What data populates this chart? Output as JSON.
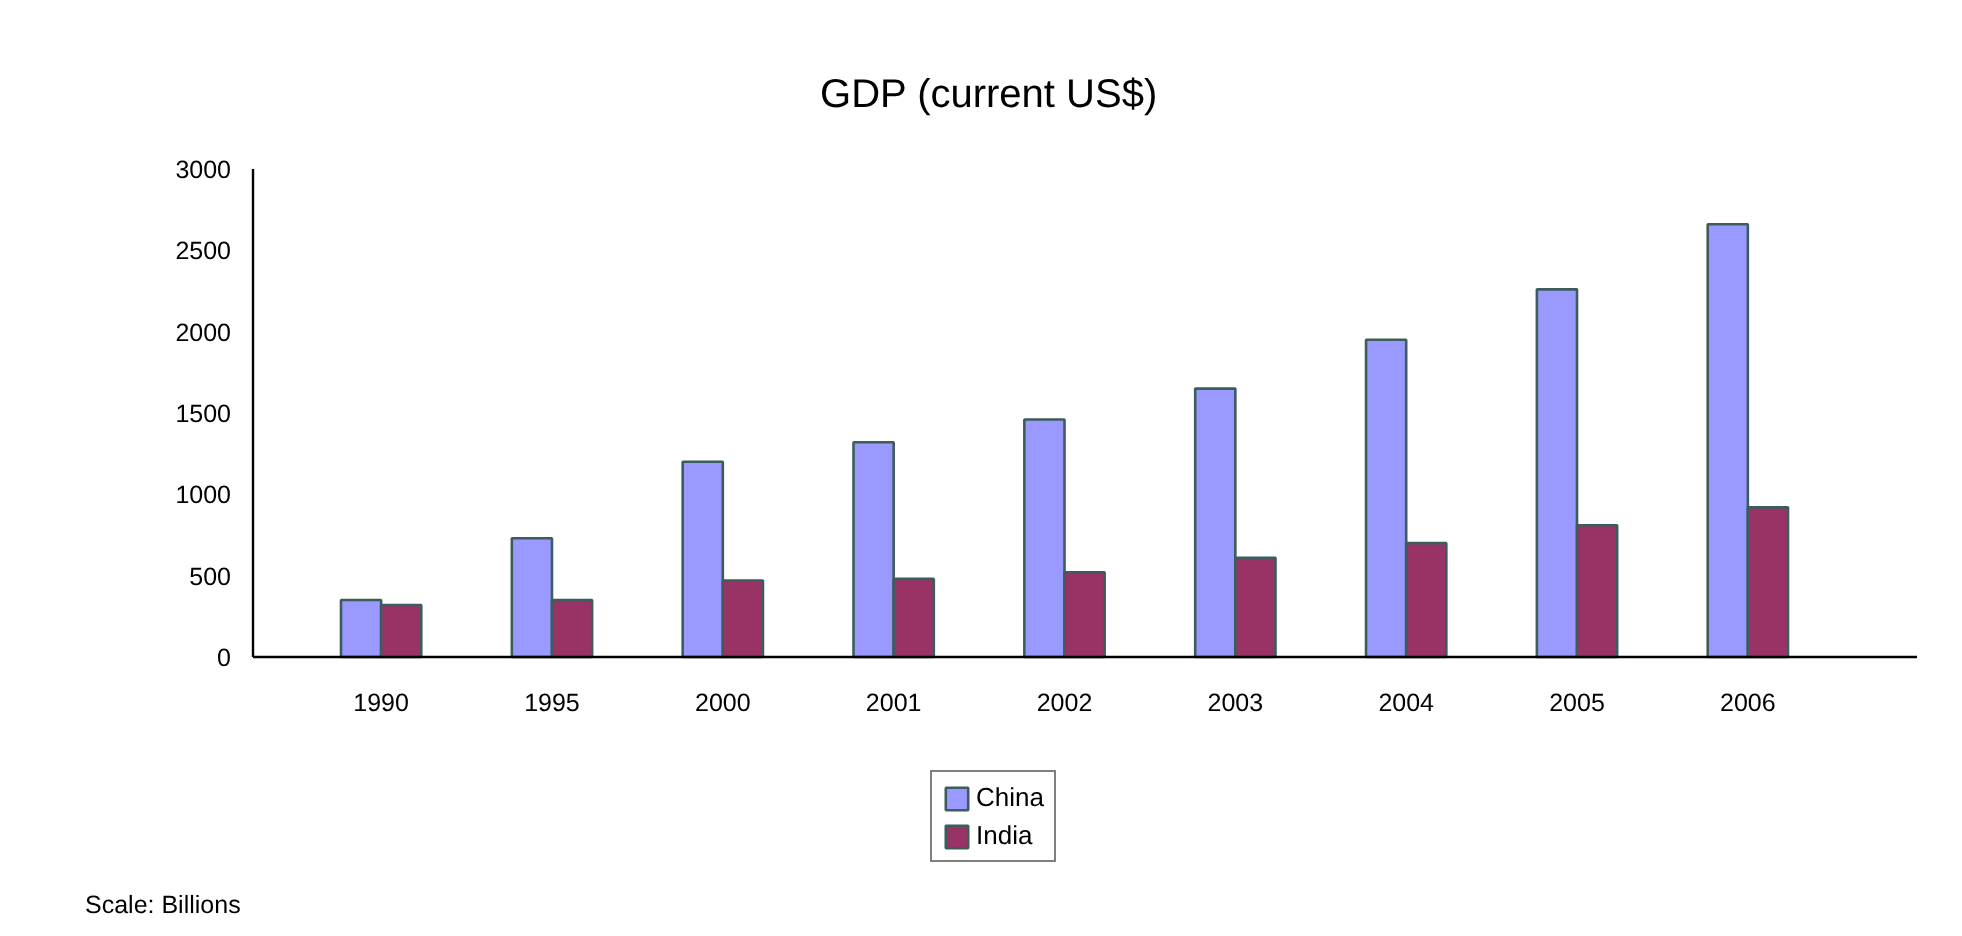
{
  "chart_data": {
    "type": "bar",
    "title": "GDP (current US$)",
    "categories": [
      "1990",
      "1995",
      "2000",
      "2001",
      "2002",
      "2003",
      "2004",
      "2005",
      "2006"
    ],
    "series": [
      {
        "name": "China",
        "color": "#9999ff",
        "values": [
          350,
          730,
          1200,
          1320,
          1460,
          1650,
          1950,
          2260,
          2660
        ]
      },
      {
        "name": "India",
        "color": "#993366",
        "values": [
          320,
          350,
          470,
          480,
          520,
          610,
          700,
          810,
          920
        ]
      }
    ],
    "ylim": [
      0,
      3000
    ],
    "yticks": [
      0,
      500,
      1000,
      1500,
      2000,
      2500,
      3000
    ],
    "grid": false,
    "legend": "bottom",
    "annotations": [
      "Scale: Billions"
    ]
  }
}
